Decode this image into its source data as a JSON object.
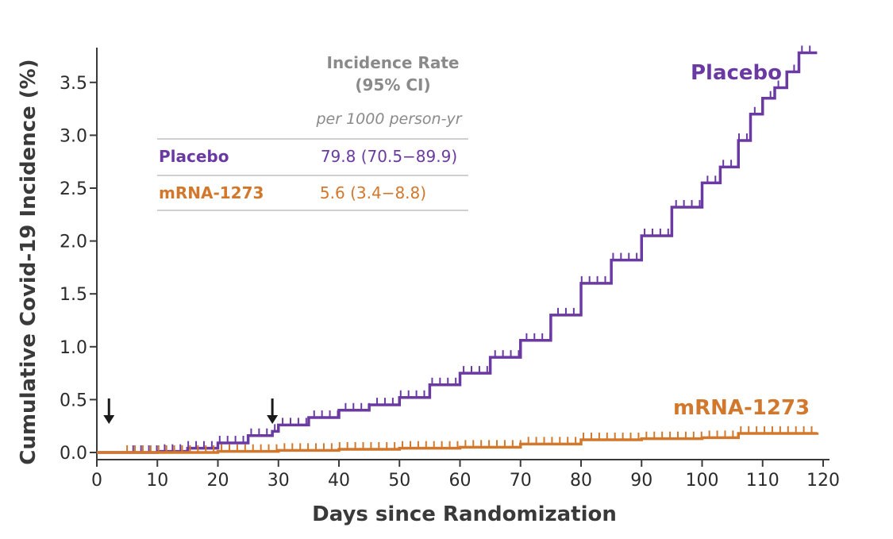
{
  "chart_data": {
    "type": "line",
    "title": "",
    "xlabel": "Days since Randomization",
    "ylabel": "Cumulative Covid-19 Incidence (%)",
    "xlim": [
      0,
      120
    ],
    "ylim": [
      0,
      3.8
    ],
    "x_ticks": [
      "0",
      "10",
      "20",
      "30",
      "40",
      "50",
      "60",
      "70",
      "80",
      "90",
      "100",
      "110",
      "120"
    ],
    "y_ticks": [
      "0.0",
      "0.5",
      "1.0",
      "1.5",
      "2.0",
      "2.5",
      "3.0",
      "3.5"
    ],
    "grid": false,
    "step": true,
    "series": [
      {
        "name": "Placebo",
        "color": "#6a3aa2",
        "points": [
          [
            0,
            0
          ],
          [
            5,
            0
          ],
          [
            10,
            0.01
          ],
          [
            15,
            0.04
          ],
          [
            20,
            0.09
          ],
          [
            25,
            0.16
          ],
          [
            29,
            0.2
          ],
          [
            30,
            0.26
          ],
          [
            35,
            0.33
          ],
          [
            40,
            0.4
          ],
          [
            45,
            0.45
          ],
          [
            50,
            0.52
          ],
          [
            55,
            0.64
          ],
          [
            60,
            0.75
          ],
          [
            65,
            0.9
          ],
          [
            70,
            1.06
          ],
          [
            75,
            1.3
          ],
          [
            80,
            1.6
          ],
          [
            85,
            1.82
          ],
          [
            90,
            2.05
          ],
          [
            95,
            2.32
          ],
          [
            100,
            2.55
          ],
          [
            103,
            2.7
          ],
          [
            106,
            2.95
          ],
          [
            108,
            3.2
          ],
          [
            110,
            3.35
          ],
          [
            112,
            3.45
          ],
          [
            114,
            3.6
          ],
          [
            116,
            3.78
          ],
          [
            119,
            3.78
          ]
        ]
      },
      {
        "name": "mRNA-1273",
        "color": "#d2782d",
        "points": [
          [
            0,
            0
          ],
          [
            10,
            0.0
          ],
          [
            20,
            0.01
          ],
          [
            30,
            0.02
          ],
          [
            40,
            0.03
          ],
          [
            50,
            0.04
          ],
          [
            60,
            0.05
          ],
          [
            70,
            0.08
          ],
          [
            80,
            0.12
          ],
          [
            90,
            0.13
          ],
          [
            100,
            0.14
          ],
          [
            106,
            0.18
          ],
          [
            119,
            0.19
          ]
        ]
      }
    ],
    "annotations": [
      {
        "type": "arrow-down",
        "x": 2,
        "y": 0.18
      },
      {
        "type": "arrow-down",
        "x": 29,
        "y": 0.18
      }
    ],
    "inset_table": {
      "header_line1": "Incidence Rate",
      "header_line2": "(95% CI)",
      "subheader": "per 1000 person-yr",
      "rows": [
        {
          "name": "Placebo",
          "value": "79.8 (70.5−89.9)",
          "color": "#6a3aa2"
        },
        {
          "name": "mRNA-1273",
          "value": "5.6 (3.4−8.8)",
          "color": "#d2782d"
        }
      ]
    }
  }
}
